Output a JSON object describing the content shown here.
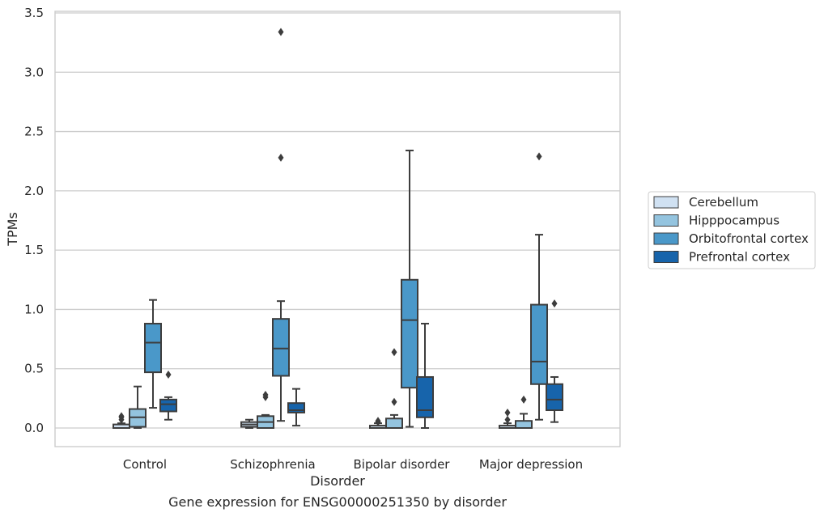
{
  "chart_data": {
    "type": "box",
    "title": "",
    "caption": "Gene expression for ENSG00000251350 by disorder",
    "xlabel": "Disorder",
    "ylabel": "TPMs",
    "ylim": [
      -0.16,
      3.52
    ],
    "yticks": [
      "0.0",
      "0.5",
      "1.0",
      "1.5",
      "2.0",
      "2.5",
      "3.0",
      "3.5"
    ],
    "grid": "horizontal",
    "legend_position": "right",
    "categories": [
      "Control",
      "Schizophrenia",
      "Bipolar disorder",
      "Major depression"
    ],
    "series": [
      {
        "name": "Cerebellum",
        "color": "#d0e1f2",
        "boxes": [
          {
            "q1": 0.0,
            "median": 0.0,
            "q3": 0.03,
            "whislo": 0.0,
            "whishi": 0.04,
            "fliers": [
              0.07,
              0.09,
              0.1
            ]
          },
          {
            "q1": 0.01,
            "median": 0.03,
            "q3": 0.05,
            "whislo": 0.0,
            "whishi": 0.07,
            "fliers": []
          },
          {
            "q1": 0.0,
            "median": 0.0,
            "q3": 0.02,
            "whislo": 0.0,
            "whishi": 0.04,
            "fliers": [
              0.05,
              0.06
            ]
          },
          {
            "q1": 0.0,
            "median": 0.0,
            "q3": 0.02,
            "whislo": 0.0,
            "whishi": 0.04,
            "fliers": [
              0.07,
              0.13
            ]
          }
        ]
      },
      {
        "name": "Hipppocampus",
        "color": "#94c4df",
        "boxes": [
          {
            "q1": 0.01,
            "median": 0.09,
            "q3": 0.16,
            "whislo": 0.0,
            "whishi": 0.35,
            "fliers": []
          },
          {
            "q1": 0.0,
            "median": 0.05,
            "q3": 0.1,
            "whislo": 0.0,
            "whishi": 0.11,
            "fliers": [
              0.26,
              0.28
            ]
          },
          {
            "q1": 0.0,
            "median": 0.0,
            "q3": 0.08,
            "whislo": 0.0,
            "whishi": 0.11,
            "fliers": [
              0.22,
              0.64
            ]
          },
          {
            "q1": 0.0,
            "median": 0.0,
            "q3": 0.06,
            "whislo": 0.0,
            "whishi": 0.12,
            "fliers": [
              0.24
            ]
          }
        ]
      },
      {
        "name": "Orbitofrontal cortex",
        "color": "#4a98c9",
        "boxes": [
          {
            "q1": 0.47,
            "median": 0.72,
            "q3": 0.88,
            "whislo": 0.17,
            "whishi": 1.08,
            "fliers": []
          },
          {
            "q1": 0.44,
            "median": 0.67,
            "q3": 0.92,
            "whislo": 0.06,
            "whishi": 1.07,
            "fliers": [
              2.28,
              3.34
            ]
          },
          {
            "q1": 0.34,
            "median": 0.91,
            "q3": 1.25,
            "whislo": 0.01,
            "whishi": 2.34,
            "fliers": []
          },
          {
            "q1": 0.37,
            "median": 0.56,
            "q3": 1.04,
            "whislo": 0.07,
            "whishi": 1.63,
            "fliers": [
              2.29
            ]
          }
        ]
      },
      {
        "name": "Prefrontal cortex",
        "color": "#1764ab",
        "boxes": [
          {
            "q1": 0.14,
            "median": 0.2,
            "q3": 0.24,
            "whislo": 0.07,
            "whishi": 0.26,
            "fliers": [
              0.45
            ]
          },
          {
            "q1": 0.13,
            "median": 0.15,
            "q3": 0.21,
            "whislo": 0.02,
            "whishi": 0.33,
            "fliers": []
          },
          {
            "q1": 0.09,
            "median": 0.15,
            "q3": 0.43,
            "whislo": 0.0,
            "whishi": 0.88,
            "fliers": []
          },
          {
            "q1": 0.15,
            "median": 0.24,
            "q3": 0.37,
            "whislo": 0.05,
            "whishi": 0.43,
            "fliers": [
              1.05
            ]
          }
        ]
      }
    ]
  }
}
